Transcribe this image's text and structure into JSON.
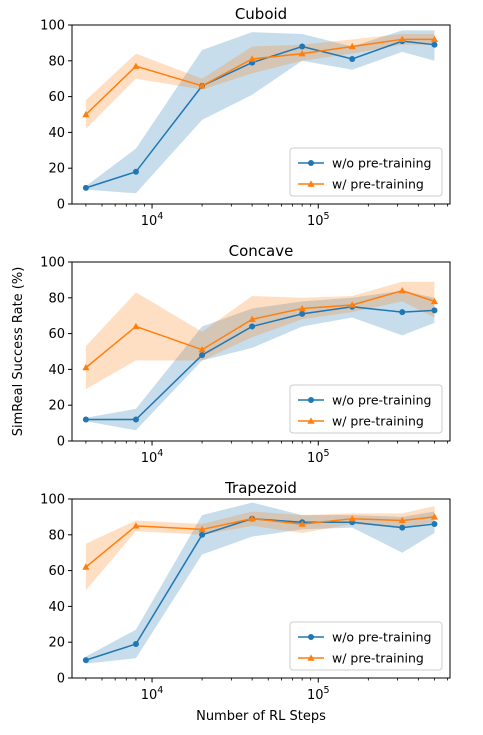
{
  "chart_data": [
    {
      "type": "line",
      "title": "Cuboid",
      "xscale": "log",
      "x": [
        4000,
        8000,
        20000,
        40000,
        80000,
        160000,
        320000,
        500000
      ],
      "xlim": [
        3300,
        620000
      ],
      "ylim": [
        0,
        100
      ],
      "xticks": [
        {
          "value": 10000,
          "base": "10",
          "exp": "4"
        },
        {
          "value": 100000,
          "base": "10",
          "exp": "5"
        }
      ],
      "yticks": [
        "0",
        "20",
        "40",
        "60",
        "80",
        "100"
      ],
      "legend": "lower-right",
      "series": [
        {
          "name": "w/o pre-training",
          "color": "#1f77b4",
          "marker": "circle",
          "values": [
            9,
            18,
            66,
            79,
            88,
            81,
            91,
            89
          ],
          "lower": [
            8,
            6,
            47,
            61,
            80,
            75,
            85,
            80
          ],
          "upper": [
            10,
            31,
            86,
            96,
            95,
            88,
            97,
            97
          ]
        },
        {
          "name": "w/ pre-training",
          "color": "#ff7f0e",
          "marker": "triangle",
          "values": [
            50,
            77,
            66,
            81,
            84,
            88,
            92,
            92
          ],
          "lower": [
            42,
            70,
            64,
            73,
            80,
            84,
            89,
            89
          ],
          "upper": [
            58,
            84,
            70,
            88,
            89,
            92,
            95,
            95
          ]
        }
      ]
    },
    {
      "type": "line",
      "title": "Concave",
      "ylabel": "SimReal Success Rate (%)",
      "xscale": "log",
      "x": [
        4000,
        8000,
        20000,
        40000,
        80000,
        160000,
        320000,
        500000
      ],
      "xlim": [
        3300,
        620000
      ],
      "ylim": [
        0,
        100
      ],
      "xticks": [
        {
          "value": 10000,
          "base": "10",
          "exp": "4"
        },
        {
          "value": 100000,
          "base": "10",
          "exp": "5"
        }
      ],
      "yticks": [
        "0",
        "20",
        "40",
        "60",
        "80",
        "100"
      ],
      "legend": "lower-right",
      "series": [
        {
          "name": "w/o pre-training",
          "color": "#1f77b4",
          "marker": "circle",
          "values": [
            12,
            12,
            48,
            64,
            71,
            75,
            72,
            73
          ],
          "lower": [
            11,
            6,
            45,
            52,
            64,
            69,
            59,
            66
          ],
          "upper": [
            13,
            18,
            64,
            74,
            78,
            80,
            84,
            80
          ]
        },
        {
          "name": "w/ pre-training",
          "color": "#ff7f0e",
          "marker": "triangle",
          "values": [
            41,
            64,
            51,
            68,
            74,
            76,
            84,
            78
          ],
          "lower": [
            29,
            45,
            45,
            58,
            68,
            72,
            78,
            69
          ],
          "upper": [
            53,
            83,
            61,
            81,
            80,
            81,
            89,
            89
          ]
        }
      ]
    },
    {
      "type": "line",
      "title": "Trapezoid",
      "xlabel": "Number of RL Steps",
      "xscale": "log",
      "x": [
        4000,
        8000,
        20000,
        40000,
        80000,
        160000,
        320000,
        500000
      ],
      "xlim": [
        3300,
        620000
      ],
      "ylim": [
        0,
        100
      ],
      "xticks": [
        {
          "value": 10000,
          "base": "10",
          "exp": "4"
        },
        {
          "value": 100000,
          "base": "10",
          "exp": "5"
        }
      ],
      "yticks": [
        "0",
        "20",
        "40",
        "60",
        "80",
        "100"
      ],
      "legend": "lower-right",
      "series": [
        {
          "name": "w/o pre-training",
          "color": "#1f77b4",
          "marker": "circle",
          "values": [
            10,
            19,
            80,
            89,
            87,
            87,
            84,
            86
          ],
          "lower": [
            8,
            11,
            69,
            79,
            83,
            84,
            70,
            81
          ],
          "upper": [
            12,
            27,
            91,
            98,
            91,
            91,
            90,
            93
          ]
        },
        {
          "name": "w/ pre-training",
          "color": "#ff7f0e",
          "marker": "triangle",
          "values": [
            62,
            85,
            83,
            89,
            86,
            89,
            88,
            90
          ],
          "lower": [
            49,
            82,
            80,
            85,
            81,
            86,
            84,
            87
          ],
          "upper": [
            75,
            88,
            86,
            93,
            91,
            92,
            92,
            96
          ]
        }
      ]
    }
  ]
}
